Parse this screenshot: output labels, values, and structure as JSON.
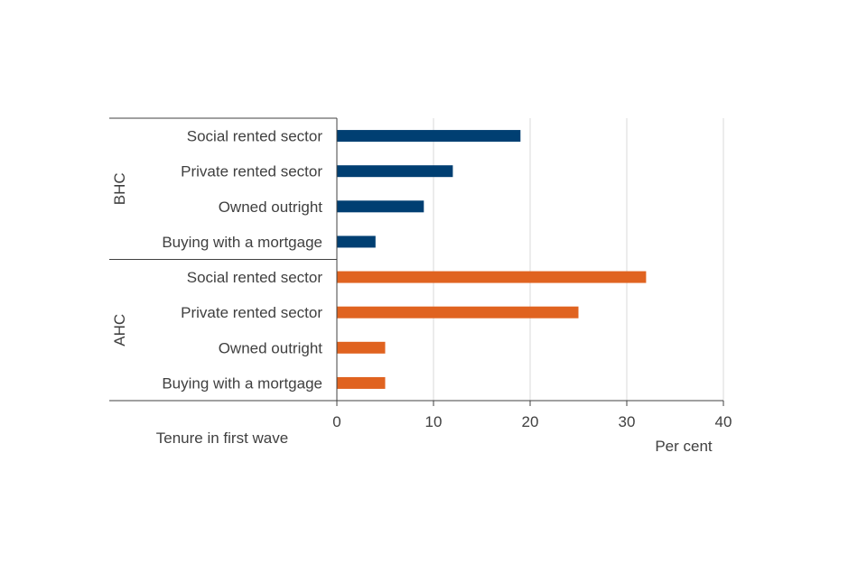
{
  "chart_data": {
    "type": "bar",
    "orientation": "horizontal",
    "groups": [
      {
        "name": "BHC",
        "color": "#003f72",
        "categories": [
          "Social rented sector",
          "Private rented sector",
          "Owned outright",
          "Buying with a mortgage"
        ],
        "values": [
          19,
          12,
          9,
          4
        ]
      },
      {
        "name": "AHC",
        "color": "#e06320",
        "categories": [
          "Social rented sector",
          "Private rented sector",
          "Owned outright",
          "Buying with a mortgage"
        ],
        "values": [
          32,
          25,
          5,
          5
        ]
      }
    ],
    "xlim": [
      0,
      40
    ],
    "xticks": [
      0,
      10,
      20,
      30,
      40
    ],
    "xlabel": "Per cent",
    "ylabel": "Tenure in first wave",
    "grid": "vertical"
  }
}
